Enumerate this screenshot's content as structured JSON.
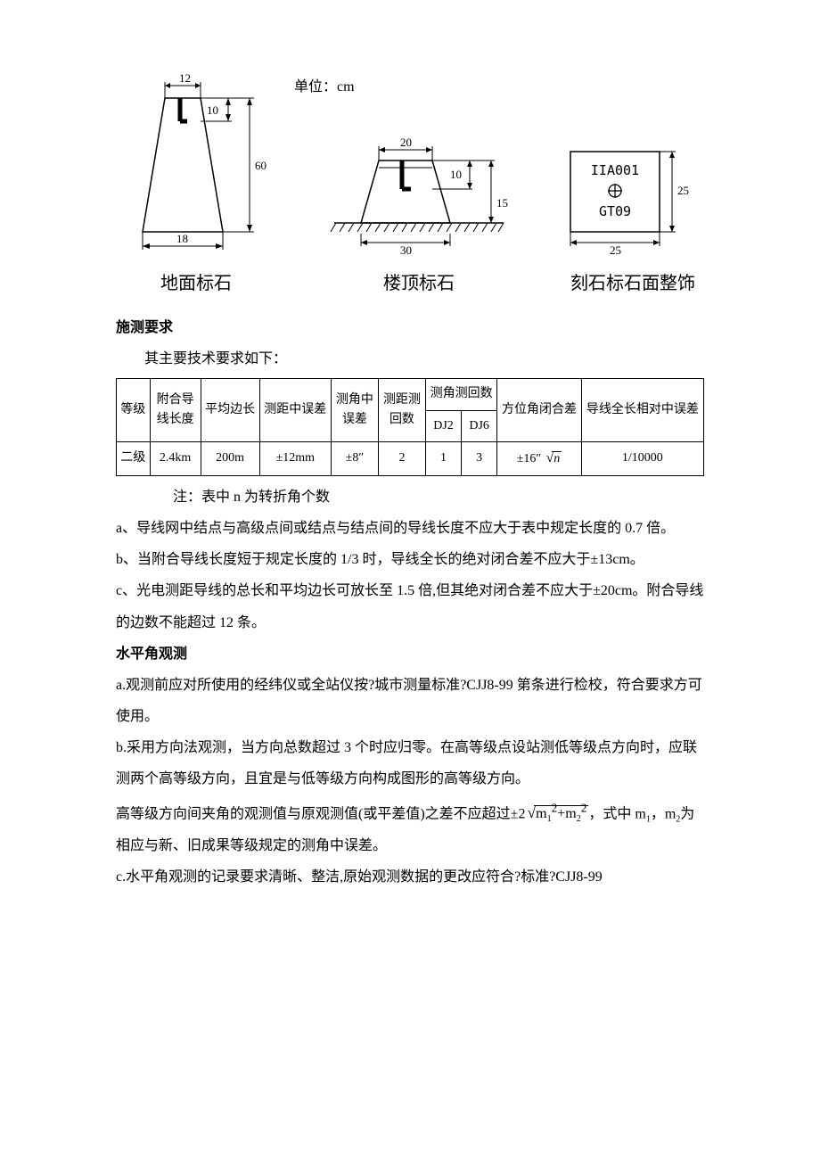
{
  "diagrams": {
    "unit_label": "单位：cm",
    "ground": {
      "caption": "地面标石",
      "top_width": "12",
      "bottom_width": "18",
      "height": "60",
      "inset": "10"
    },
    "roof": {
      "caption": "楼顶标石",
      "top_width": "20",
      "bottom_width": "30",
      "inset": "10",
      "height": "15"
    },
    "inscribed": {
      "caption": "刻石标石面整饰",
      "code_line1": "IIA001",
      "code_line2": "GT09",
      "width": "25",
      "height": "25"
    },
    "line_color": "#000000",
    "text_color": "#000000",
    "caption_fontsize": 20
  },
  "heading1": "施测要求",
  "intro_line": "其主要技术要求如下：",
  "table": {
    "columns": {
      "grade": "等级",
      "length": "附合导线长度",
      "avg_side": "平均边长",
      "dist_err": "测距中误差",
      "angle_err": "测角中误差",
      "dist_rounds": "测距测回数",
      "angle_rounds": "测角测回数",
      "dj2": "DJ2",
      "dj6": "DJ6",
      "azimuth_closure": "方位角闭合差",
      "rel_err": "导线全长相对中误差"
    },
    "row": {
      "grade": "二级",
      "length": "2.4km",
      "avg_side": "200m",
      "dist_err": "±12mm",
      "angle_err": "±8″",
      "dist_rounds": "2",
      "dj2": "1",
      "dj6": "3",
      "azimuth_closure_prefix": "±16″",
      "azimuth_radicand": "n",
      "rel_err": "1/10000"
    },
    "note": "注：表中 n 为转折角个数"
  },
  "para_a": "a、导线网中结点与高级点间或结点与结点间的导线长度不应大于表中规定长度的 0.7 倍。",
  "para_b": "b、当附合导线长度短于规定长度的 1/3 时，导线全长的绝对闭合差不应大于±13cm。",
  "para_c": "c、光电测距导线的总长和平均边长可放长至 1.5 倍,但其绝对闭合差不应大于±20cm。附合导线的边数不能超过 12 条。",
  "heading2": "水平角观测",
  "para2_a": "a.观测前应对所使用的经纬仪或全站仪按?城市测量标准?CJJ8-99 第条进行检校，符合要求方可使用。",
  "para2_b_line1": "b.采用方向法观测，当方向总数超过 3 个时应归零。在高等级点设站测低等级点方向时，应联测两个高等级方向，且宜是与低等级方向构成图形的高等级方向。",
  "para2_b_line2_prefix": "高等级方向间夹角的观测值与原观测值(或平差值)之差不应超过±2",
  "para2_b_line2_suffix": "，式中 m",
  "para2_b_line2_sub1": "1",
  "para2_b_line2_mid": "，m",
  "para2_b_line2_sub2": "2",
  "para2_b_line2_end": "为相应与新、旧成果等级规定的测角中误差。",
  "para2_b_radicand_html": "m<sub>1</sub><sup>2</sup>+m<sub>2</sub><sup>2</sup>",
  "para2_c": "c.水平角观测的记录要求清晰、整洁,原始观测数据的更改应符合?标准?CJJ8-99"
}
